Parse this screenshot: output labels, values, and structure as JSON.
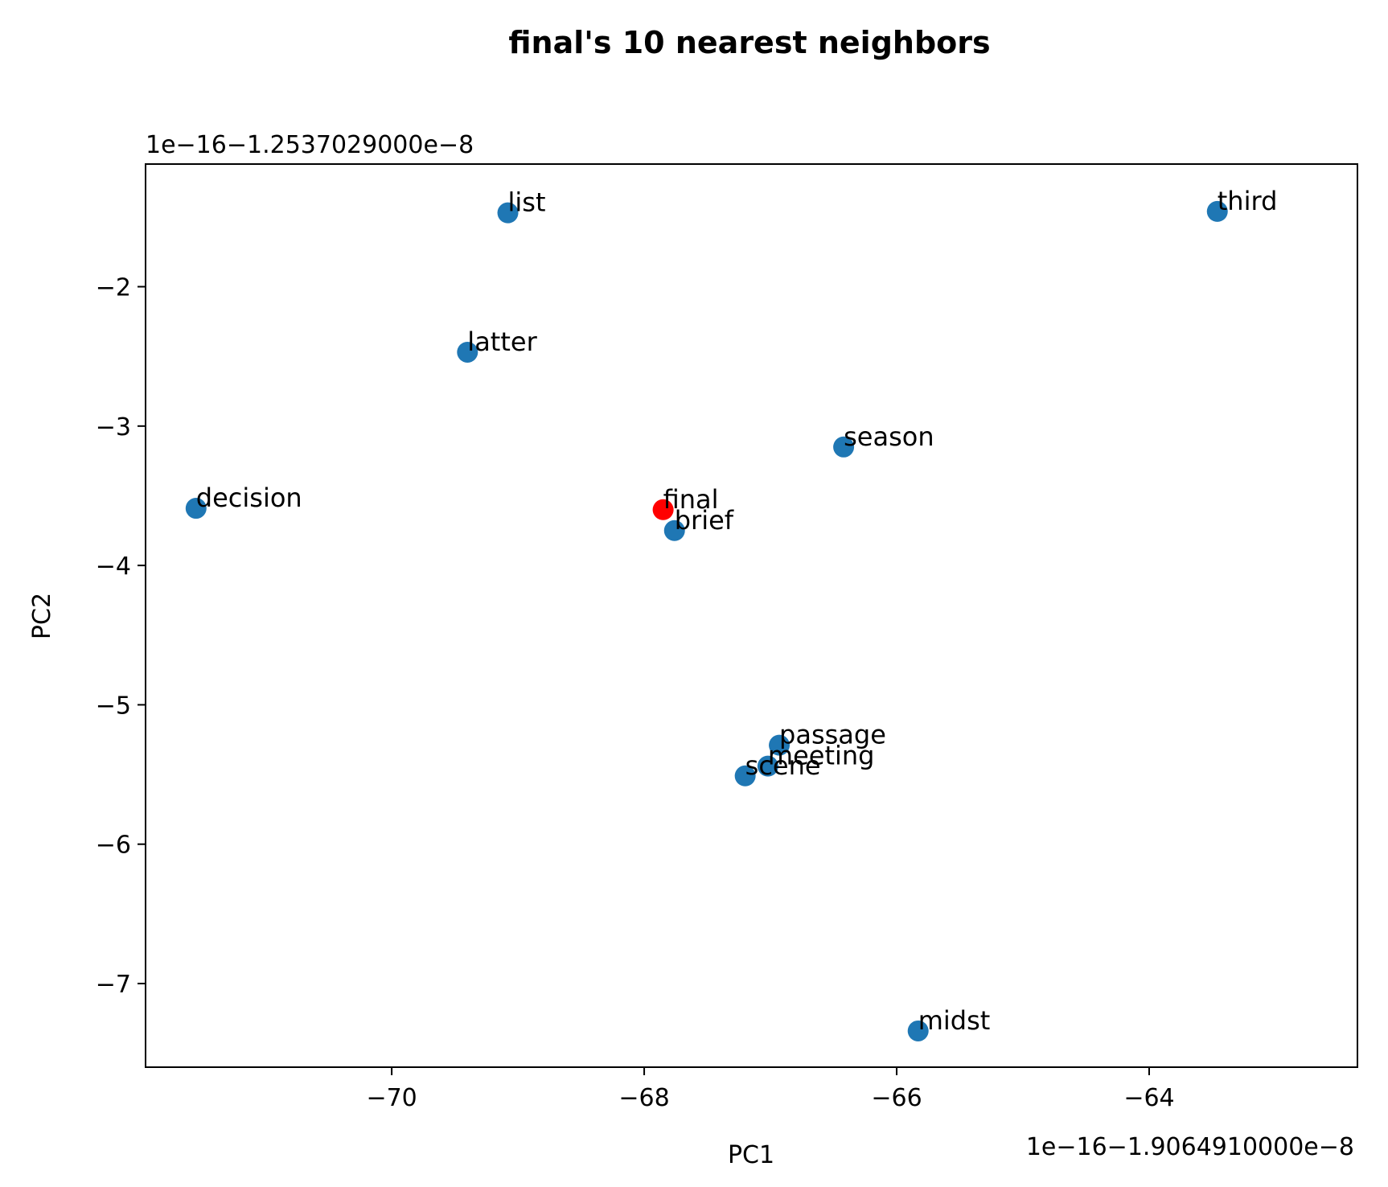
{
  "chart_data": {
    "type": "scatter",
    "title": "final's 10 nearest neighbors",
    "xlabel": "PC1",
    "ylabel": "PC2",
    "x_offset_text": "1e−16−1.9064910000e−8",
    "y_offset_text": "1e−16−1.2537029000e−8",
    "xlim": [
      -71.95,
      -62.35
    ],
    "ylim": [
      -7.6,
      -1.12
    ],
    "xticks": [
      -70,
      -68,
      -66,
      -64
    ],
    "yticks": [
      -2,
      -3,
      -4,
      -5,
      -6,
      -7
    ],
    "grid": false,
    "legend": "none",
    "colors": {
      "neighbor": "#1f77b4",
      "query": "#ff0000"
    },
    "points": [
      {
        "label": "list",
        "x": -69.08,
        "y": -1.47,
        "role": "neighbor"
      },
      {
        "label": "third",
        "x": -63.46,
        "y": -1.46,
        "role": "neighbor"
      },
      {
        "label": "latter",
        "x": -69.4,
        "y": -2.47,
        "role": "neighbor"
      },
      {
        "label": "season",
        "x": -66.42,
        "y": -3.15,
        "role": "neighbor"
      },
      {
        "label": "decision",
        "x": -71.55,
        "y": -3.59,
        "role": "neighbor"
      },
      {
        "label": "brief",
        "x": -67.76,
        "y": -3.75,
        "role": "neighbor"
      },
      {
        "label": "passage",
        "x": -66.93,
        "y": -5.29,
        "role": "neighbor"
      },
      {
        "label": "meeting",
        "x": -67.02,
        "y": -5.44,
        "role": "neighbor"
      },
      {
        "label": "scene",
        "x": -67.2,
        "y": -5.51,
        "role": "neighbor"
      },
      {
        "label": "midst",
        "x": -65.83,
        "y": -7.34,
        "role": "neighbor"
      },
      {
        "label": "final",
        "x": -67.85,
        "y": -3.6,
        "role": "query"
      }
    ]
  }
}
